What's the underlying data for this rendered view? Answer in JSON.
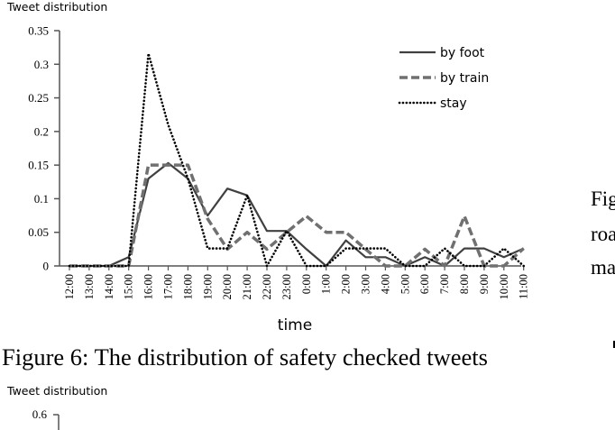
{
  "chart_data": [
    {
      "type": "line",
      "ylabel": "Tweet distribution",
      "xlabel": "time",
      "ylim": [
        0,
        0.35
      ],
      "yticks": [
        "0",
        "0.05",
        "0.1",
        "0.15",
        "0.2",
        "0.25",
        "0.3",
        "0.35"
      ],
      "categories": [
        "12:00",
        "13:00",
        "14:00",
        "15:00",
        "16:00",
        "17:00",
        "18:00",
        "19:00",
        "20:00",
        "21:00",
        "22:00",
        "23:00",
        "0:00",
        "1:00",
        "2:00",
        "3:00",
        "4:00",
        "5:00",
        "6:00",
        "7:00",
        "8:00",
        "9:00",
        "10:00",
        "11:00"
      ],
      "legend_position": "top-right",
      "series": [
        {
          "name": "by foot",
          "color": "#404040",
          "style": "solid",
          "values": [
            0,
            0,
            0,
            0.013,
            0.13,
            0.153,
            0.13,
            0.075,
            0.115,
            0.105,
            0.052,
            0.052,
            0.025,
            0,
            0.038,
            0.013,
            0.013,
            0,
            0.013,
            0,
            0.026,
            0.026,
            0.013,
            0.026
          ]
        },
        {
          "name": "by train",
          "color": "#707070",
          "style": "dashed",
          "values": [
            0,
            0,
            0,
            0,
            0.15,
            0.15,
            0.15,
            0.07,
            0.025,
            0.05,
            0.025,
            0.05,
            0.074,
            0.05,
            0.05,
            0.025,
            0,
            0,
            0.025,
            0,
            0.074,
            0,
            0,
            0.026
          ]
        },
        {
          "name": "stay",
          "color": "#000000",
          "style": "dotted",
          "values": [
            0,
            0,
            0,
            0,
            0.316,
            0.21,
            0.13,
            0.026,
            0.026,
            0.105,
            0,
            0.052,
            0,
            0,
            0.026,
            0.026,
            0.026,
            0,
            0,
            0.026,
            0,
            0,
            0.026,
            0
          ]
        }
      ]
    },
    {
      "type": "line",
      "ylabel": "Tweet distribution",
      "yticks": [
        "0.6"
      ]
    }
  ],
  "caption": "Figure 6: The distribution of safety checked tweets",
  "side_text": [
    "Fig",
    "roa",
    "ma"
  ]
}
